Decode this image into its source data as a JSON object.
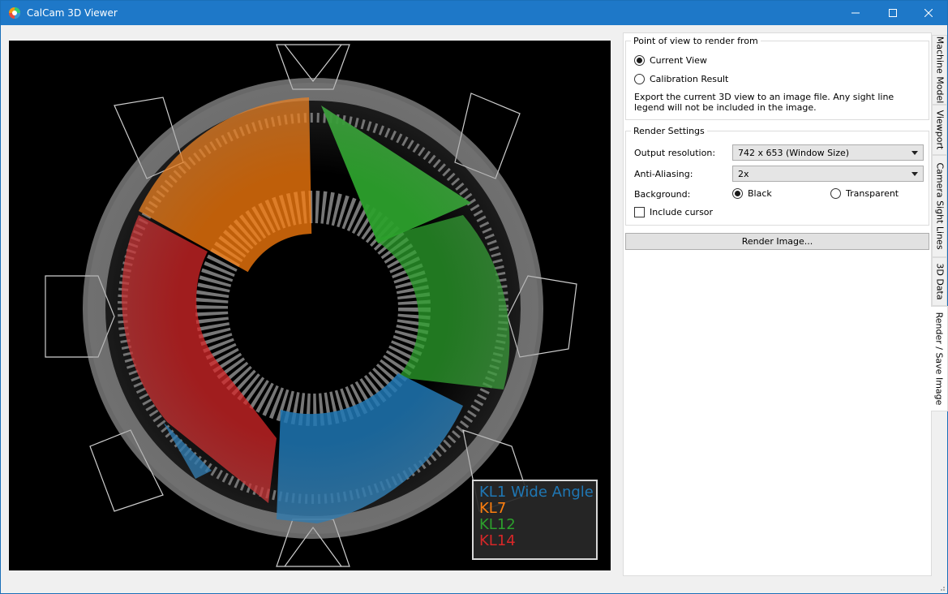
{
  "window": {
    "title": "CalCam 3D Viewer",
    "controls": [
      "minimize",
      "maximize",
      "close"
    ]
  },
  "legend": {
    "items": [
      {
        "label": "KL1 Wide Angle",
        "color": "#1f77b4"
      },
      {
        "label": "KL7",
        "color": "#ff7f0e"
      },
      {
        "label": "KL12",
        "color": "#2ca02c"
      },
      {
        "label": "KL14",
        "color": "#d62728"
      }
    ]
  },
  "pov_group": {
    "title": "Point of view to render from",
    "options": [
      {
        "label": "Current View",
        "checked": true
      },
      {
        "label": "Calibration Result",
        "checked": false
      }
    ],
    "export_text": "Export the current 3D view to an image file. Any sight line legend will not be included in the image."
  },
  "render_group": {
    "title": "Render Settings",
    "resolution_label": "Output resolution:",
    "resolution_value": "742 x 653 (Window Size)",
    "aa_label": "Anti-Aliasing:",
    "aa_value": "2x",
    "background_label": "Background:",
    "bg_black": "Black",
    "bg_transparent": "Transparent",
    "include_cursor": "Include cursor"
  },
  "render_button": "Render Image...",
  "tabs": [
    {
      "label": "Machine Model",
      "active": false
    },
    {
      "label": "Viewport",
      "active": false
    },
    {
      "label": "Camera Sight Lines",
      "active": false
    },
    {
      "label": "3D Data",
      "active": false
    },
    {
      "label": "Render / Save Image",
      "active": true
    }
  ]
}
